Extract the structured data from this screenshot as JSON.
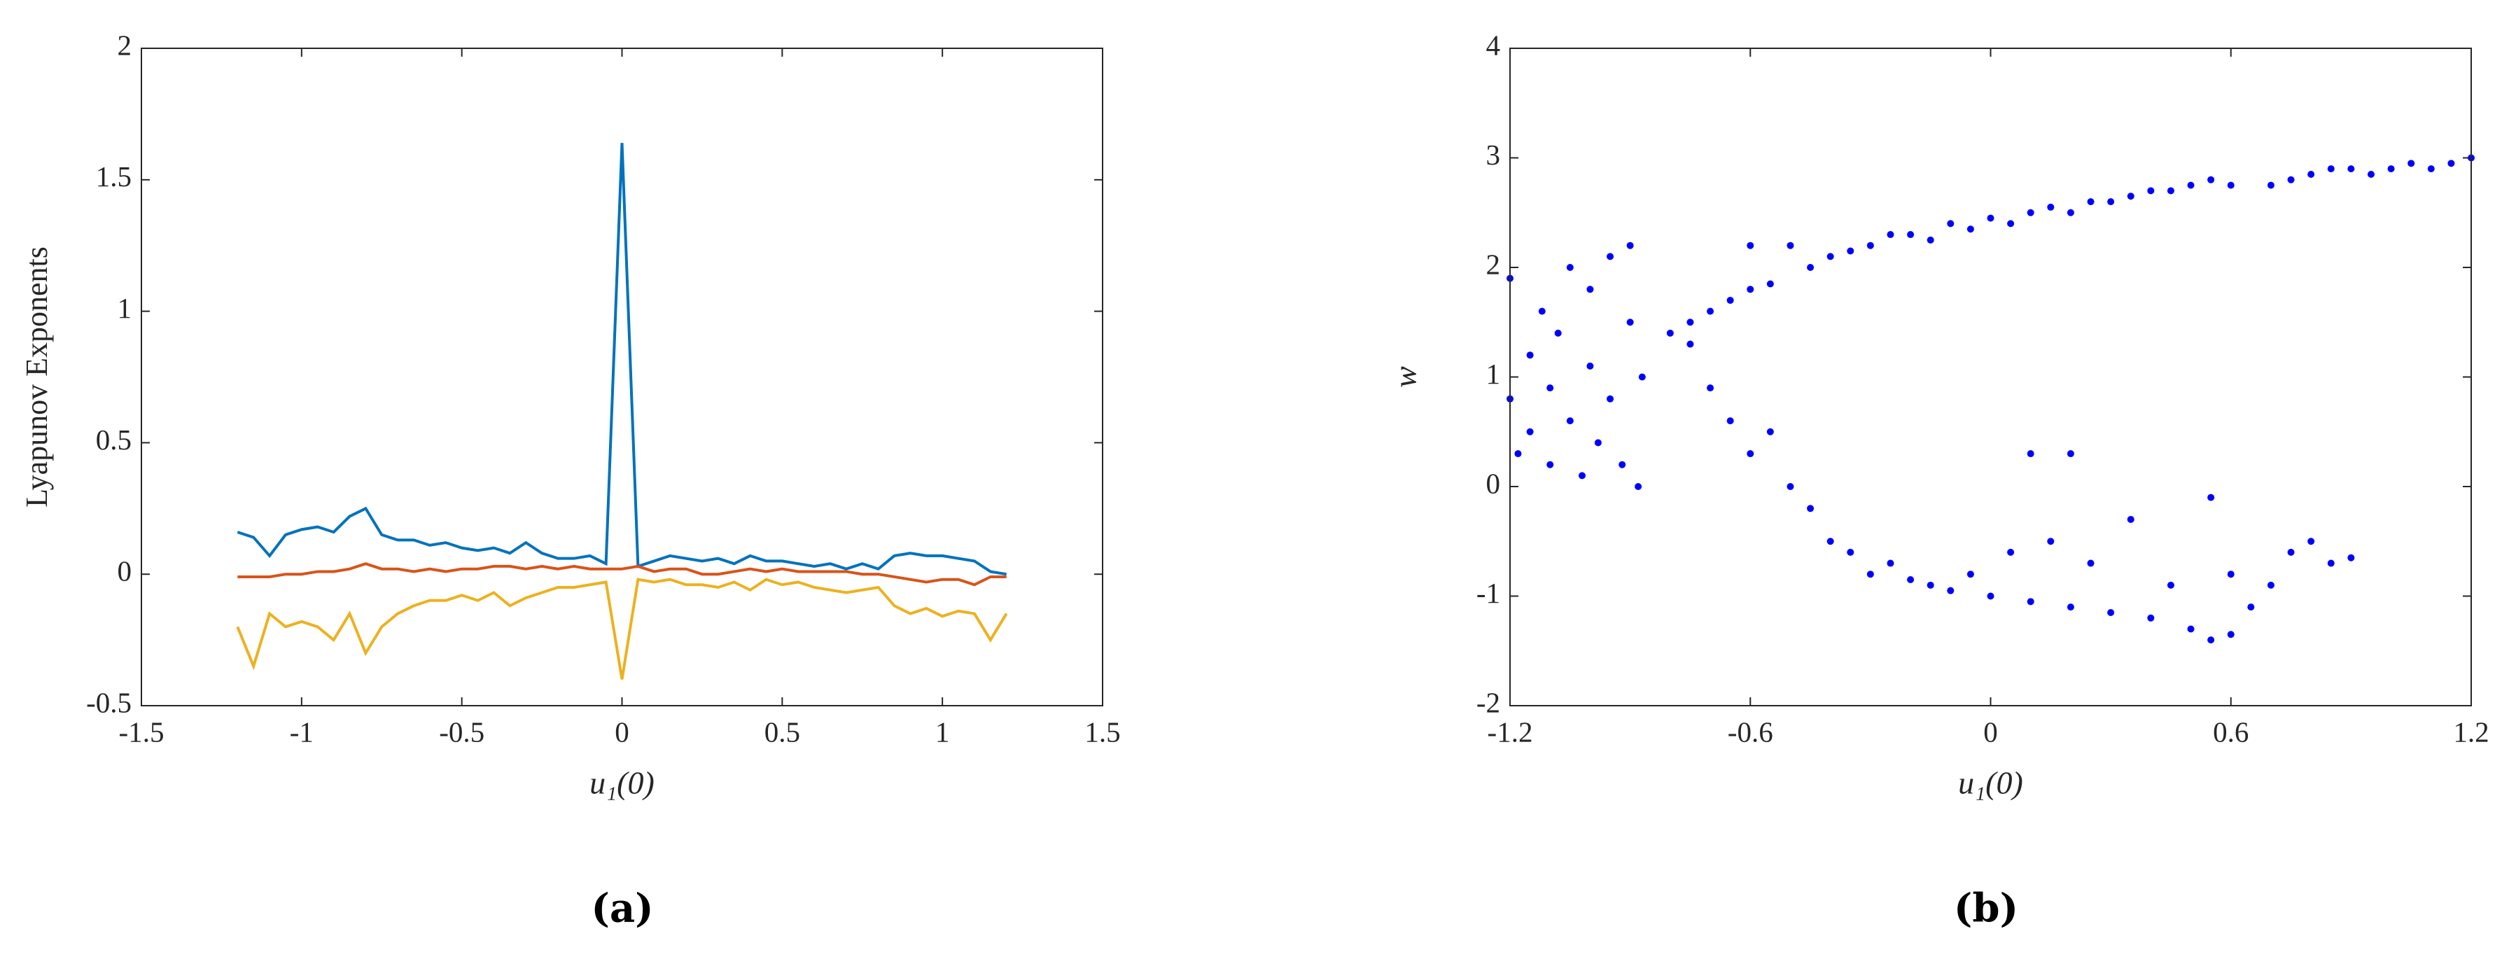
{
  "chart_data": [
    {
      "type": "line",
      "caption": "(a)",
      "xlabel": "u₁(0)",
      "ylabel": "Lyapunov Exponents",
      "xlim": [
        -1.5,
        1.5
      ],
      "xticks": [
        -1.5,
        -1,
        -0.5,
        0,
        0.5,
        1,
        1.5
      ],
      "ylim": [
        -0.5,
        2
      ],
      "yticks": [
        -0.5,
        0,
        0.5,
        1,
        1.5,
        2
      ],
      "x": [
        -1.2,
        -1.15,
        -1.1,
        -1.05,
        -1,
        -0.95,
        -0.9,
        -0.85,
        -0.8,
        -0.75,
        -0.7,
        -0.65,
        -0.6,
        -0.55,
        -0.5,
        -0.45,
        -0.4,
        -0.35,
        -0.3,
        -0.25,
        -0.2,
        -0.15,
        -0.1,
        -0.05,
        0,
        0.05,
        0.1,
        0.15,
        0.2,
        0.25,
        0.3,
        0.35,
        0.4,
        0.45,
        0.5,
        0.55,
        0.6,
        0.65,
        0.7,
        0.75,
        0.8,
        0.85,
        0.9,
        0.95,
        1,
        1.05,
        1.1,
        1.15,
        1.2
      ],
      "series": [
        {
          "color": "#0072bd",
          "values": [
            0.16,
            0.14,
            0.07,
            0.15,
            0.17,
            0.18,
            0.16,
            0.22,
            0.25,
            0.15,
            0.13,
            0.13,
            0.11,
            0.12,
            0.1,
            0.09,
            0.1,
            0.08,
            0.12,
            0.08,
            0.06,
            0.06,
            0.07,
            0.04,
            1.64,
            0.03,
            0.05,
            0.07,
            0.06,
            0.05,
            0.06,
            0.04,
            0.07,
            0.05,
            0.05,
            0.04,
            0.03,
            0.04,
            0.02,
            0.04,
            0.02,
            0.07,
            0.08,
            0.07,
            0.07,
            0.06,
            0.05,
            0.01,
            0
          ]
        },
        {
          "color": "#d95319",
          "values": [
            -0.01,
            -0.01,
            -0.01,
            0,
            0,
            0.01,
            0.01,
            0.02,
            0.04,
            0.02,
            0.02,
            0.01,
            0.02,
            0.01,
            0.02,
            0.02,
            0.03,
            0.03,
            0.02,
            0.03,
            0.02,
            0.03,
            0.02,
            0.02,
            0.02,
            0.03,
            0.01,
            0.02,
            0.02,
            0,
            0,
            0.01,
            0.02,
            0.01,
            0.02,
            0.01,
            0.01,
            0.01,
            0.01,
            0,
            0,
            -0.01,
            -0.02,
            -0.03,
            -0.02,
            -0.02,
            -0.04,
            -0.01,
            -0.01
          ]
        },
        {
          "color": "#edb120",
          "values": [
            -0.2,
            -0.35,
            -0.15,
            -0.2,
            -0.18,
            -0.2,
            -0.25,
            -0.15,
            -0.3,
            -0.2,
            -0.15,
            -0.12,
            -0.1,
            -0.1,
            -0.08,
            -0.1,
            -0.07,
            -0.12,
            -0.09,
            -0.07,
            -0.05,
            -0.05,
            -0.04,
            -0.03,
            -0.4,
            -0.02,
            -0.03,
            -0.02,
            -0.04,
            -0.04,
            -0.05,
            -0.03,
            -0.06,
            -0.02,
            -0.04,
            -0.03,
            -0.05,
            -0.06,
            -0.07,
            -0.06,
            -0.05,
            -0.12,
            -0.15,
            -0.13,
            -0.16,
            -0.14,
            -0.15,
            -0.25,
            -0.15
          ]
        }
      ]
    },
    {
      "type": "scatter",
      "caption": "(b)",
      "xlabel": "u₁(0)",
      "ylabel": "w",
      "color": "#0000ff",
      "xlim": [
        -1.2,
        1.2
      ],
      "xticks": [
        -1.2,
        -0.6,
        0,
        0.6,
        1.2
      ],
      "ylim": [
        -2,
        4
      ],
      "yticks": [
        -2,
        -1,
        0,
        1,
        2,
        3,
        4
      ],
      "x": [
        -1.2,
        -1.2,
        -1.18,
        -1.15,
        -1.15,
        -1.12,
        -1.1,
        -1.1,
        -1.08,
        -1.05,
        -1.05,
        -1.02,
        -1,
        -1,
        -0.98,
        -0.95,
        -0.95,
        -0.92,
        -0.9,
        -0.9,
        -0.88,
        -0.87,
        -0.8,
        -0.75,
        -0.7,
        -0.65,
        -0.6,
        -0.6,
        -0.55,
        -0.5,
        -0.45,
        -0.4,
        -0.35,
        -0.3,
        -0.25,
        -0.2,
        -0.15,
        -0.1,
        -0.05,
        0,
        0.05,
        0.1,
        0.15,
        0.2,
        0.25,
        0.3,
        0.35,
        0.4,
        0.45,
        0.5,
        0.55,
        0.6,
        0.7,
        0.75,
        0.8,
        0.85,
        0.9,
        0.95,
        1,
        1.05,
        1.1,
        1.15,
        1.2,
        -0.75,
        -0.7,
        -0.65,
        -0.6,
        -0.55,
        -0.5,
        -0.45,
        -0.4,
        -0.35,
        -0.3,
        -0.25,
        -0.2,
        -0.15,
        -0.1,
        -0.05,
        0,
        0.05,
        0.1,
        0.1,
        0.15,
        0.2,
        0.25,
        0.3,
        0.35,
        0.4,
        0.45,
        0.5,
        0.55,
        0.6,
        0.6,
        0.65,
        0.7,
        0.75,
        0.8,
        0.85,
        0.9,
        0.2,
        0.55
      ],
      "values": [
        1.9,
        0.8,
        0.3,
        1.2,
        0.5,
        1.6,
        0.2,
        0.9,
        1.4,
        0.6,
        2,
        0.1,
        1.1,
        1.8,
        0.4,
        2.1,
        0.8,
        0.2,
        1.5,
        2.2,
        0,
        1,
        1.4,
        1.5,
        1.6,
        1.7,
        1.8,
        2.2,
        1.85,
        2.2,
        2,
        2.1,
        2.15,
        2.2,
        2.3,
        2.3,
        2.25,
        2.4,
        2.35,
        2.45,
        2.4,
        2.5,
        2.55,
        2.5,
        2.6,
        2.6,
        2.65,
        2.7,
        2.7,
        2.75,
        2.8,
        2.75,
        2.75,
        2.8,
        2.85,
        2.9,
        2.9,
        2.85,
        2.9,
        2.95,
        2.9,
        2.95,
        3,
        1.3,
        0.9,
        0.6,
        0.3,
        0.5,
        0,
        -0.2,
        -0.5,
        -0.6,
        -0.8,
        -0.7,
        -0.85,
        -0.9,
        -0.95,
        -0.8,
        -1,
        -0.6,
        0.3,
        -1.05,
        -0.5,
        -1.1,
        -0.7,
        -1.15,
        -0.3,
        -1.2,
        -0.9,
        -1.3,
        -1.4,
        -1.35,
        -0.8,
        -1.1,
        -0.9,
        -0.6,
        -0.5,
        -0.7,
        -0.65,
        0.3,
        -0.1
      ]
    }
  ]
}
